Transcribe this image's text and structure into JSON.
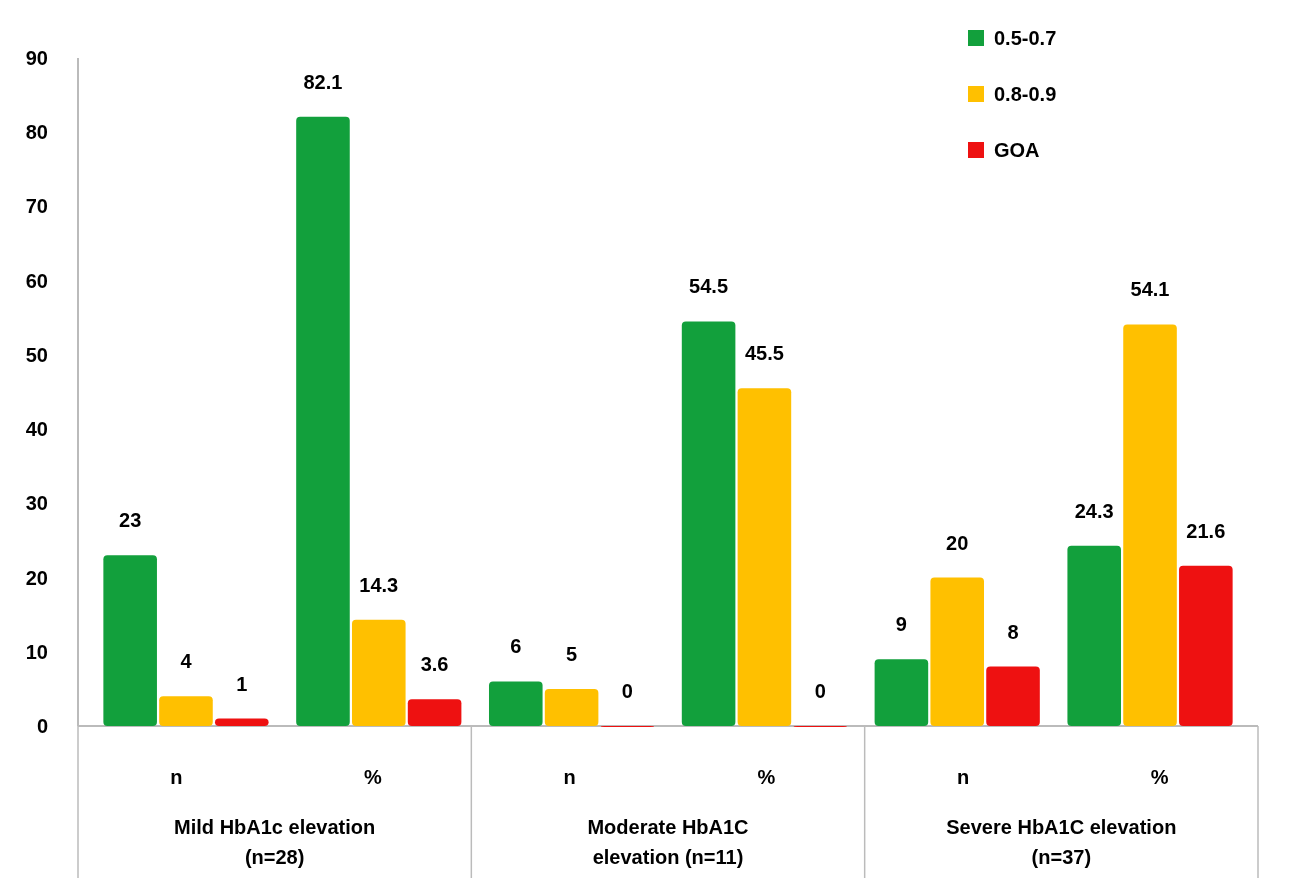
{
  "chart_data": {
    "type": "bar",
    "categories": [
      "n",
      "%",
      "n",
      "%",
      "n",
      "%"
    ],
    "series": [
      {
        "name": "0.5-0.7",
        "color": "#12a03c",
        "values": [
          23,
          82.1,
          6,
          54.5,
          9,
          24.3
        ]
      },
      {
        "name": "0.8-0.9",
        "color": "#ffc000",
        "values": [
          4,
          14.3,
          5,
          45.5,
          20,
          54.1
        ]
      },
      {
        "name": "GOA",
        "color": "#ee1111",
        "values": [
          1,
          3.6,
          0,
          0,
          8,
          21.6
        ]
      }
    ],
    "ylim": [
      0,
      90
    ],
    "yticks": [
      0,
      10,
      20,
      30,
      40,
      50,
      60,
      70,
      80,
      90
    ],
    "grid": false,
    "legend": "top right",
    "data_labels": true,
    "annotations": [
      "Mild HbA1c elevation (n=28)",
      "Moderate HbA1C elevation (n=11)",
      "Severe HbA1C elevation (n=37)"
    ]
  }
}
